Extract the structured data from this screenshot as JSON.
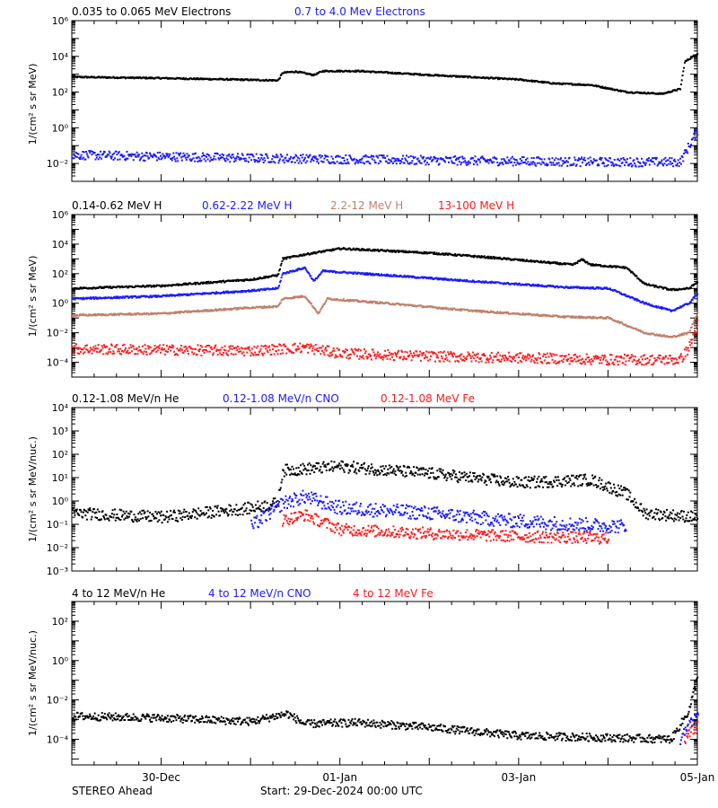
{
  "colors": {
    "black": "#000000",
    "blue": "#1a1aff",
    "tan": "#c0806a",
    "red": "#ff1a1a"
  },
  "chart_data": [
    {
      "type": "scatter",
      "yscale": "log",
      "ylabel": "1/(cm² s sr MeV)",
      "ylim": [
        0.001,
        1000000
      ],
      "yticks": [
        {
          "v": 0.01,
          "label": "10⁻²"
        },
        {
          "v": 1,
          "label": "10⁰"
        },
        {
          "v": 100,
          "label": "10²"
        },
        {
          "v": 10000,
          "label": "10⁴"
        },
        {
          "v": 1000000,
          "label": "10⁶"
        }
      ],
      "series": [
        {
          "name": "0.035 to 0.065 MeV Electrons",
          "color": "#000000",
          "scatter": 0.04,
          "points": [
            [
              0,
              700
            ],
            [
              1.0,
              600
            ],
            [
              2.3,
              450
            ],
            [
              2.35,
              1200
            ],
            [
              2.5,
              1400
            ],
            [
              2.7,
              900
            ],
            [
              2.8,
              1500
            ],
            [
              3.2,
              1500
            ],
            [
              4.0,
              900
            ],
            [
              5.0,
              500
            ],
            [
              5.4,
              300
            ],
            [
              5.8,
              250
            ],
            [
              6.2,
              100
            ],
            [
              6.6,
              80
            ],
            [
              6.8,
              150
            ],
            [
              6.85,
              5000
            ],
            [
              7.0,
              15000
            ]
          ]
        },
        {
          "name": "0.7 to 4.0 Mev Electrons",
          "color": "#1a1aff",
          "scatter": 0.25,
          "points": [
            [
              0,
              0.03
            ],
            [
              2.0,
              0.02
            ],
            [
              4.0,
              0.015
            ],
            [
              6.0,
              0.012
            ],
            [
              6.8,
              0.012
            ],
            [
              6.9,
              0.1
            ],
            [
              7.0,
              0.8
            ]
          ]
        }
      ]
    },
    {
      "type": "scatter",
      "yscale": "log",
      "ylabel": "1/(cm² s sr MeV)",
      "ylim": [
        1e-05,
        1000000
      ],
      "yticks": [
        {
          "v": 0.0001,
          "label": "10⁻⁴"
        },
        {
          "v": 0.01,
          "label": "10⁻²"
        },
        {
          "v": 1,
          "label": "10⁰"
        },
        {
          "v": 100,
          "label": "10²"
        },
        {
          "v": 10000,
          "label": "10⁴"
        },
        {
          "v": 1000000,
          "label": "10⁶"
        }
      ],
      "series": [
        {
          "name": "0.14-0.62 MeV H",
          "color": "#000000",
          "scatter": 0.06,
          "points": [
            [
              0,
              10
            ],
            [
              1.0,
              15
            ],
            [
              2.0,
              40
            ],
            [
              2.3,
              80
            ],
            [
              2.35,
              1000
            ],
            [
              2.6,
              2000
            ],
            [
              3.0,
              5000
            ],
            [
              4.0,
              2500
            ],
            [
              4.7,
              1200
            ],
            [
              5.6,
              400
            ],
            [
              5.7,
              900
            ],
            [
              5.8,
              400
            ],
            [
              6.2,
              250
            ],
            [
              6.4,
              20
            ],
            [
              6.7,
              8
            ],
            [
              6.9,
              10
            ],
            [
              7.0,
              30
            ]
          ]
        },
        {
          "name": "0.62-2.22 MeV H",
          "color": "#1a1aff",
          "scatter": 0.06,
          "points": [
            [
              0,
              2
            ],
            [
              1.0,
              3
            ],
            [
              2.0,
              7
            ],
            [
              2.3,
              10
            ],
            [
              2.35,
              100
            ],
            [
              2.6,
              250
            ],
            [
              2.7,
              30
            ],
            [
              2.8,
              150
            ],
            [
              3.5,
              80
            ],
            [
              4.5,
              30
            ],
            [
              5.5,
              12
            ],
            [
              6.0,
              10
            ],
            [
              6.4,
              1
            ],
            [
              6.7,
              0.3
            ],
            [
              6.9,
              1
            ],
            [
              7.0,
              5
            ]
          ]
        },
        {
          "name": "2.2-12 MeV H",
          "color": "#c0806a",
          "scatter": 0.06,
          "points": [
            [
              0,
              0.15
            ],
            [
              1.0,
              0.2
            ],
            [
              2.0,
              0.5
            ],
            [
              2.3,
              0.6
            ],
            [
              2.35,
              2
            ],
            [
              2.6,
              3
            ],
            [
              2.75,
              0.2
            ],
            [
              2.85,
              2
            ],
            [
              3.5,
              1
            ],
            [
              4.5,
              0.3
            ],
            [
              5.5,
              0.12
            ],
            [
              6.0,
              0.1
            ],
            [
              6.4,
              0.01
            ],
            [
              6.7,
              0.005
            ],
            [
              6.9,
              0.01
            ],
            [
              7.0,
              0.3
            ]
          ]
        },
        {
          "name": "13-100 MeV H",
          "color": "#ff1a1a",
          "scatter": 0.35,
          "points": [
            [
              0,
              0.0008
            ],
            [
              2.0,
              0.0006
            ],
            [
              2.6,
              0.001
            ],
            [
              3.0,
              0.0004
            ],
            [
              4.0,
              0.00025
            ],
            [
              5.0,
              0.0002
            ],
            [
              6.0,
              0.00015
            ],
            [
              6.8,
              0.00015
            ],
            [
              6.9,
              0.001
            ],
            [
              7.0,
              0.05
            ]
          ]
        }
      ]
    },
    {
      "type": "scatter",
      "yscale": "log",
      "ylabel": "1/(cm² s sr MeV/nuc.)",
      "ylim": [
        0.001,
        10000
      ],
      "yticks": [
        {
          "v": 0.001,
          "label": "10⁻³"
        },
        {
          "v": 0.01,
          "label": "10⁻²"
        },
        {
          "v": 0.1,
          "label": "10⁻¹"
        },
        {
          "v": 1,
          "label": "10⁰"
        },
        {
          "v": 10,
          "label": "10¹"
        },
        {
          "v": 100,
          "label": "10²"
        },
        {
          "v": 1000,
          "label": "10³"
        },
        {
          "v": 10000,
          "label": "10⁴"
        }
      ],
      "series": [
        {
          "name": "0.12-1.08 MeV/n He",
          "color": "#000000",
          "scatter": 0.25,
          "points": [
            [
              0,
              0.3
            ],
            [
              1.0,
              0.2
            ],
            [
              2.0,
              0.5
            ],
            [
              2.3,
              0.8
            ],
            [
              2.35,
              20
            ],
            [
              2.7,
              25
            ],
            [
              3.0,
              30
            ],
            [
              4.0,
              15
            ],
            [
              5.0,
              6
            ],
            [
              5.8,
              8
            ],
            [
              6.2,
              2
            ],
            [
              6.4,
              0.3
            ],
            [
              7.0,
              0.2
            ]
          ]
        },
        {
          "name": "0.12-1.08 MeV/n CNO",
          "color": "#1a1aff",
          "scatter": 0.3,
          "points": [
            [
              2.0,
              0.08
            ],
            [
              2.35,
              0.8
            ],
            [
              2.6,
              1.5
            ],
            [
              3.0,
              0.5
            ],
            [
              4.0,
              0.3
            ],
            [
              4.8,
              0.15
            ],
            [
              5.6,
              0.1
            ],
            [
              6.2,
              0.08
            ]
          ]
        },
        {
          "name": "0.12-1.08 MeV Fe",
          "color": "#ff1a1a",
          "scatter": 0.25,
          "points": [
            [
              2.35,
              0.15
            ],
            [
              2.6,
              0.25
            ],
            [
              3.0,
              0.06
            ],
            [
              4.0,
              0.04
            ],
            [
              5.0,
              0.03
            ],
            [
              6.0,
              0.025
            ]
          ]
        }
      ]
    },
    {
      "type": "scatter",
      "yscale": "log",
      "ylabel": "1/(cm² s sr MeV/nuc.)",
      "ylim": [
        5e-06,
        1000
      ],
      "yticks": [
        {
          "v": 0.0001,
          "label": "10⁻⁴"
        },
        {
          "v": 0.01,
          "label": "10⁻²"
        },
        {
          "v": 1,
          "label": "10⁰"
        },
        {
          "v": 100,
          "label": "10²"
        }
      ],
      "series": [
        {
          "name": "4 to 12 MeV/n He",
          "color": "#000000",
          "scatter": 0.2,
          "points": [
            [
              0,
              0.0015
            ],
            [
              1.0,
              0.0012
            ],
            [
              2.0,
              0.0008
            ],
            [
              2.4,
              0.002
            ],
            [
              2.6,
              0.0006
            ],
            [
              3.2,
              0.0007
            ],
            [
              4.0,
              0.0004
            ],
            [
              5.0,
              0.00015
            ],
            [
              6.0,
              0.00012
            ],
            [
              6.7,
              0.0001
            ],
            [
              6.9,
              0.003
            ],
            [
              7.0,
              0.2
            ]
          ]
        },
        {
          "name": "4 to 12 MeV/n CNO",
          "color": "#1a1aff",
          "scatter": 0.3,
          "points": [
            [
              6.8,
              0.0001
            ],
            [
              7.0,
              0.002
            ]
          ]
        },
        {
          "name": "4 to 12 MeV Fe",
          "color": "#ff1a1a",
          "scatter": 0.3,
          "points": [
            [
              6.85,
              0.0001
            ],
            [
              7.0,
              0.0006
            ]
          ]
        }
      ]
    }
  ],
  "xaxis": {
    "range_days": [
      0,
      7
    ],
    "major_ticks": [
      {
        "day": 1,
        "label": "30-Dec"
      },
      {
        "day": 3,
        "label": "01-Jan"
      },
      {
        "day": 5,
        "label": "03-Jan"
      },
      {
        "day": 7,
        "label": "05-Jan"
      }
    ]
  },
  "footer": {
    "left": "STEREO Ahead",
    "center": "Start: 29-Dec-2024 00:00 UTC"
  }
}
